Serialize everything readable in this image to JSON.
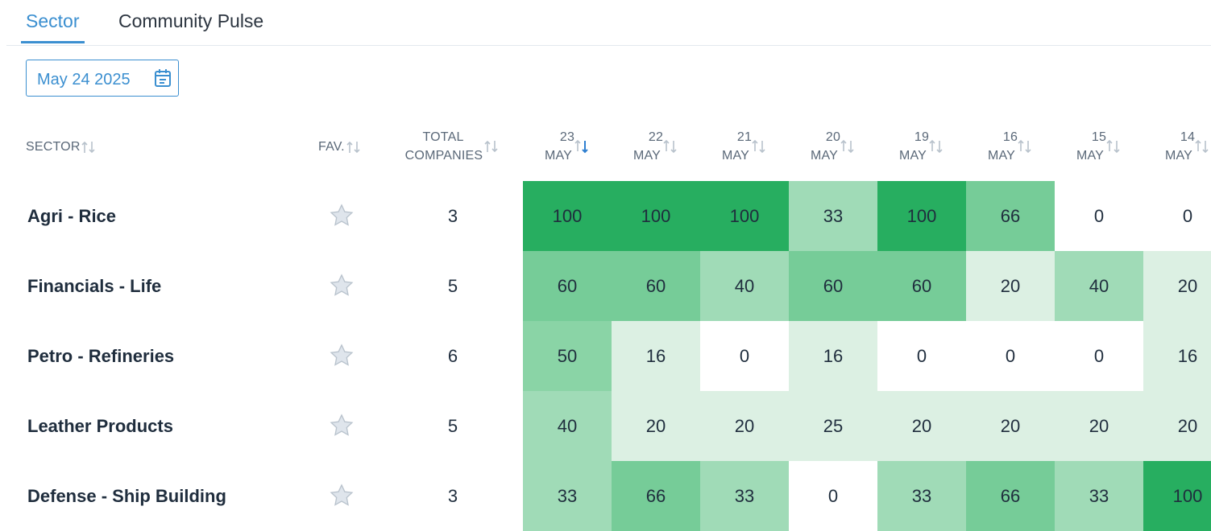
{
  "tabs": [
    {
      "label": "Sector",
      "active": true
    },
    {
      "label": "Community Pulse",
      "active": false
    }
  ],
  "date_picker": {
    "value": "May 24 2025",
    "icon": "calendar-icon"
  },
  "columns": {
    "sector": "SECTOR",
    "fav": "FAV.",
    "total_line1": "TOTAL",
    "total_line2": "COMPANIES",
    "dates": [
      {
        "day": "23",
        "month": "MAY",
        "sorted": true
      },
      {
        "day": "22",
        "month": "MAY"
      },
      {
        "day": "21",
        "month": "MAY"
      },
      {
        "day": "20",
        "month": "MAY"
      },
      {
        "day": "19",
        "month": "MAY"
      },
      {
        "day": "16",
        "month": "MAY"
      },
      {
        "day": "15",
        "month": "MAY"
      },
      {
        "day": "14",
        "month": "MAY"
      }
    ]
  },
  "rows": [
    {
      "sector": "Agri - Rice",
      "total": "3",
      "values": [
        "100",
        "100",
        "100",
        "33",
        "100",
        "66",
        "0",
        "0"
      ]
    },
    {
      "sector": "Financials - Life",
      "total": "5",
      "values": [
        "60",
        "60",
        "40",
        "60",
        "60",
        "20",
        "40",
        "20"
      ]
    },
    {
      "sector": "Petro - Refineries",
      "total": "6",
      "values": [
        "50",
        "16",
        "0",
        "16",
        "0",
        "0",
        "0",
        "16"
      ]
    },
    {
      "sector": "Leather Products",
      "total": "5",
      "values": [
        "40",
        "20",
        "20",
        "25",
        "20",
        "20",
        "20",
        "20"
      ]
    },
    {
      "sector": "Defense - Ship Building",
      "total": "3",
      "values": [
        "33",
        "66",
        "33",
        "0",
        "33",
        "66",
        "33",
        "100"
      ]
    }
  ],
  "colors": {
    "accent": "#3b8fd0",
    "heat_100": "#27ae60",
    "heat_60": "#76cc98",
    "heat_50": "#8ad4a6",
    "heat_40": "#a0dbb7",
    "heat_low": "#dcf0e3",
    "heat_0": "#ffffff"
  }
}
